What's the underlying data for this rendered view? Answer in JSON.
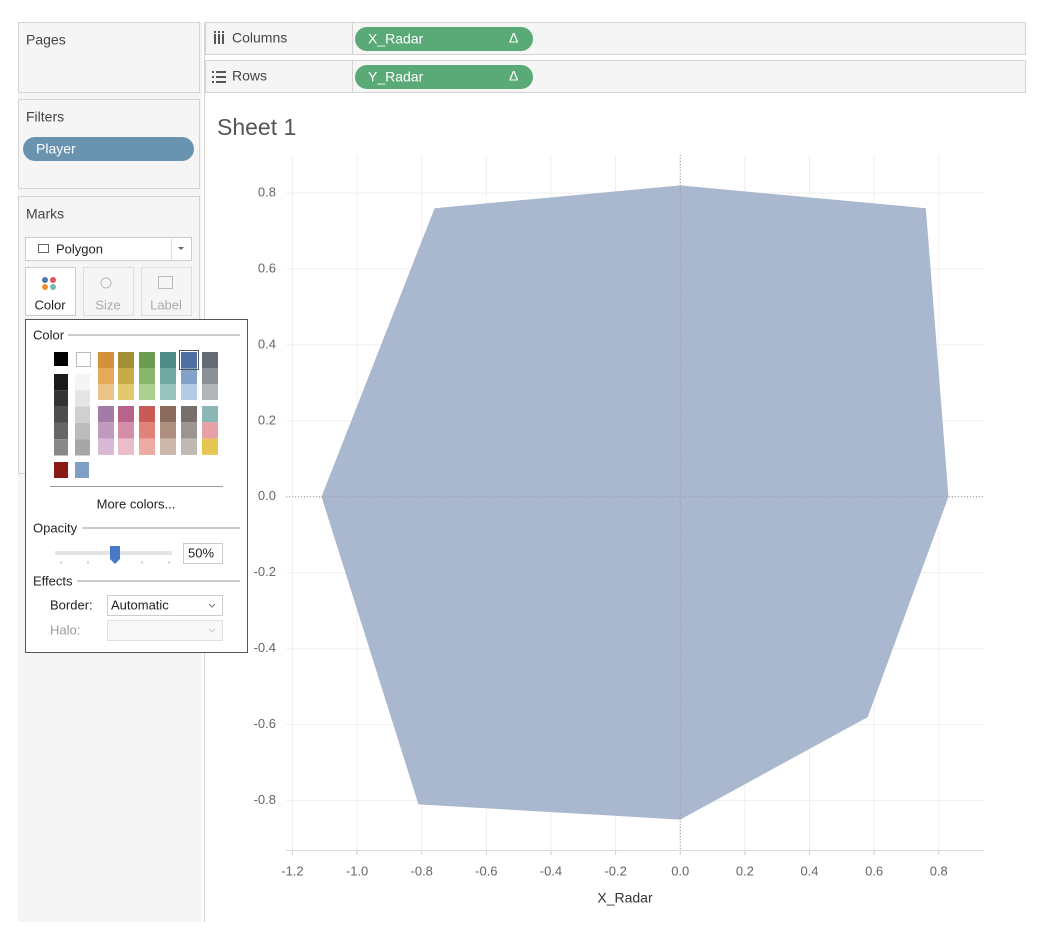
{
  "ui": {
    "pages": "Pages",
    "columns": {
      "label": "Columns",
      "pill": "X_Radar",
      "icon": "Δ"
    },
    "rows": {
      "label": "Rows",
      "pill": "Y_Radar",
      "icon": "Δ"
    },
    "filters": {
      "title": "Filters",
      "pill": "Player"
    },
    "marks": {
      "title": "Marks",
      "mark_type": "Polygon",
      "buttons": [
        "Color",
        "Size",
        "Label"
      ]
    },
    "color_popup": {
      "title": "Color",
      "more": "More colors...",
      "opacity_label": "Opacity",
      "opacity": "50%",
      "effects": "Effects",
      "border_label": "Border:",
      "border": "Automatic",
      "halo_label": "Halo:"
    }
  },
  "chart_data": {
    "type": "polygon",
    "title": "Sheet 1",
    "x_label": "X_Radar",
    "x": [
      0.0,
      0.76,
      0.83,
      0.58,
      0.0,
      -0.81,
      -1.11,
      -0.76
    ],
    "values": [
      0.82,
      0.76,
      0.0,
      -0.58,
      -0.85,
      -0.81,
      0.0,
      0.76
    ],
    "color": "#a9b8cf",
    "xlim": [
      -1.22,
      0.94
    ],
    "xticks": [
      -1.2,
      {
        "value": -1,
        "label": "-1.0"
      },
      -0.8,
      -0.6,
      -0.4,
      -0.2,
      {
        "value": 0,
        "label": "0.0"
      },
      0.2,
      0.4,
      0.6,
      0.8
    ],
    "ylim": [
      -0.93,
      0.9
    ],
    "yticks": [
      0.8,
      0.6,
      0.4,
      0.2,
      {
        "value": 0,
        "label": "0.0"
      },
      -0.2,
      -0.4,
      -0.6,
      -0.8
    ],
    "grid": true
  }
}
